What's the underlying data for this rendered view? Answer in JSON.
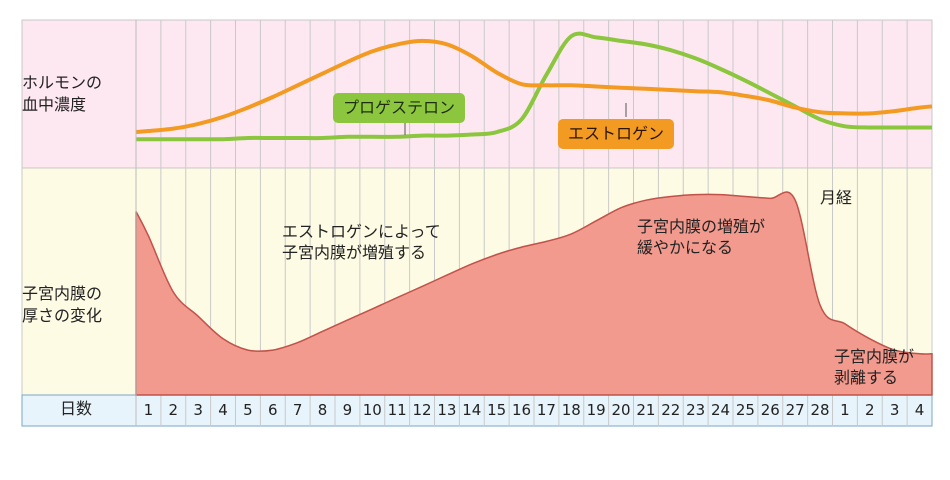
{
  "hormone_section": {
    "label": "ホルモンの\n血中濃度",
    "progesterone_label": "プロゲステロン",
    "estrogen_label": "エストロゲン"
  },
  "endometrium_section": {
    "label": "子宮内膜の\n厚さの変化",
    "annotations": {
      "growth": "エストロゲンによって\n子宮内膜が増殖する",
      "slowing": "子宮内膜の増殖が\n緩やかになる",
      "menstruation": "月経",
      "shedding": "子宮内膜が\n剥離する"
    }
  },
  "day_axis": {
    "label": "日数",
    "days": [
      "1",
      "2",
      "3",
      "4",
      "5",
      "6",
      "7",
      "8",
      "9",
      "10",
      "11",
      "12",
      "13",
      "14",
      "15",
      "16",
      "17",
      "18",
      "19",
      "20",
      "21",
      "22",
      "23",
      "24",
      "25",
      "26",
      "27",
      "28",
      "1",
      "2",
      "3",
      "4"
    ]
  },
  "colors": {
    "hormone_bg": "#fde8f1",
    "endometrium_bg": "#fefbe4",
    "day_bg": "#e8f4fb",
    "endometrium_fill": "#f19a8d",
    "estrogen": "#f39a22",
    "progesterone": "#8cc63f"
  },
  "chart_data": {
    "type": "line",
    "x_label": "日数",
    "x": [
      1,
      2,
      3,
      4,
      5,
      6,
      7,
      8,
      9,
      10,
      11,
      12,
      13,
      14,
      15,
      16,
      17,
      18,
      19,
      20,
      21,
      22,
      23,
      24,
      25,
      26,
      27,
      28,
      29,
      30,
      31,
      32
    ],
    "series": [
      {
        "name": "エストロゲン",
        "values": [
          12,
          14,
          18,
          24,
          32,
          41,
          51,
          61,
          71,
          80,
          86,
          89,
          86,
          76,
          62,
          52,
          51,
          51,
          50,
          49,
          48,
          47,
          46,
          45,
          42,
          38,
          32,
          28,
          27,
          27,
          29,
          32
        ]
      },
      {
        "name": "プロゲステロン",
        "values": [
          5,
          5,
          5,
          5,
          6,
          6,
          6,
          6,
          7,
          7,
          7,
          8,
          8,
          9,
          11,
          22,
          60,
          93,
          92,
          89,
          86,
          81,
          74,
          65,
          55,
          44,
          33,
          22,
          16,
          15,
          15,
          15
        ]
      },
      {
        "name": "子宮内膜の厚さ",
        "values": [
          85,
          55,
          42,
          30,
          24,
          24,
          28,
          34,
          40,
          46,
          52,
          58,
          64,
          70,
          75,
          79,
          82,
          86,
          93,
          100,
          104,
          106,
          107,
          107,
          106,
          105,
          104,
          48,
          38,
          30,
          24,
          22
        ]
      }
    ]
  }
}
